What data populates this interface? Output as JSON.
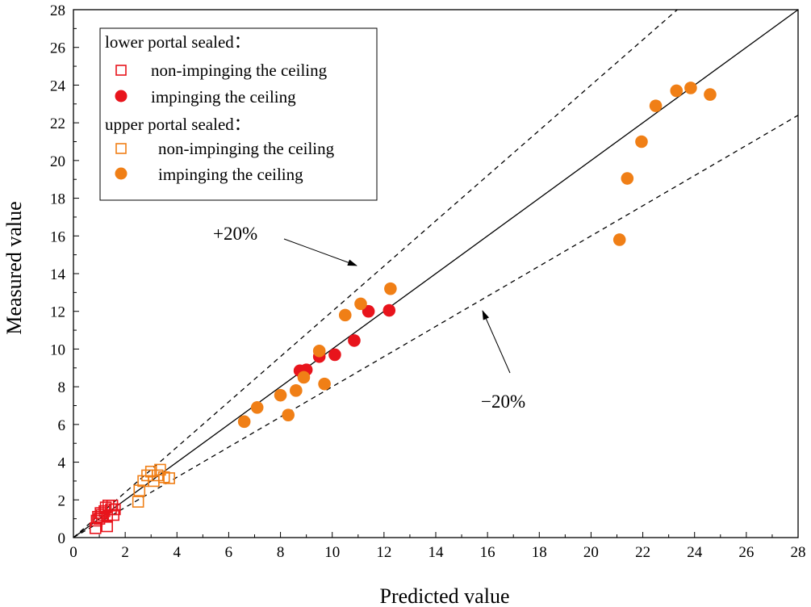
{
  "chart_data": {
    "type": "scatter",
    "title": "",
    "xlabel": "Predicted value",
    "ylabel": "Measured value",
    "xlim": [
      0,
      28
    ],
    "ylim": [
      0,
      28
    ],
    "xticks": [
      0,
      2,
      4,
      6,
      8,
      10,
      12,
      14,
      16,
      18,
      20,
      22,
      24,
      26,
      28
    ],
    "yticks": [
      0,
      2,
      4,
      6,
      8,
      10,
      12,
      14,
      16,
      18,
      20,
      22,
      24,
      26,
      28
    ],
    "grid": false,
    "legend_position": "top-left",
    "legend": {
      "groups": [
        {
          "heading": "lower portal sealed：",
          "series_indices": [
            0,
            1
          ]
        },
        {
          "heading": "upper portal sealed：",
          "series_indices": [
            2,
            3
          ]
        }
      ]
    },
    "series": [
      {
        "name": "non-impinging the ceiling",
        "marker": "square-open",
        "color": "#e8141c",
        "points": [
          [
            0.85,
            0.5
          ],
          [
            0.9,
            0.9
          ],
          [
            0.95,
            1.1
          ],
          [
            1.0,
            1.0
          ],
          [
            1.05,
            1.3
          ],
          [
            1.1,
            1.2
          ],
          [
            1.2,
            1.4
          ],
          [
            1.25,
            1.6
          ],
          [
            1.3,
            1.1
          ],
          [
            1.3,
            0.6
          ],
          [
            1.35,
            1.7
          ],
          [
            1.45,
            1.5
          ],
          [
            1.5,
            1.7
          ],
          [
            1.55,
            1.2
          ],
          [
            1.6,
            1.5
          ]
        ]
      },
      {
        "name": "impinging the ceiling",
        "marker": "circle-filled",
        "color": "#e8141c",
        "points": [
          [
            8.75,
            8.85
          ],
          [
            9.0,
            8.9
          ],
          [
            9.5,
            9.6
          ],
          [
            10.1,
            9.7
          ],
          [
            10.85,
            10.45
          ],
          [
            11.4,
            12.0
          ],
          [
            12.2,
            12.05
          ]
        ]
      },
      {
        "name": "non-impinging the ceiling",
        "marker": "square-open",
        "color": "#f07f16",
        "points": [
          [
            2.5,
            1.9
          ],
          [
            2.55,
            2.5
          ],
          [
            2.7,
            3.0
          ],
          [
            2.85,
            3.3
          ],
          [
            3.0,
            3.5
          ],
          [
            3.1,
            3.0
          ],
          [
            3.25,
            3.3
          ],
          [
            3.35,
            3.6
          ],
          [
            3.5,
            3.2
          ],
          [
            3.7,
            3.15
          ]
        ]
      },
      {
        "name": "impinging the ceiling",
        "marker": "circle-filled",
        "color": "#f07f16",
        "points": [
          [
            6.6,
            6.15
          ],
          [
            7.1,
            6.9
          ],
          [
            8.0,
            7.55
          ],
          [
            8.3,
            6.5
          ],
          [
            8.6,
            7.8
          ],
          [
            8.9,
            8.5
          ],
          [
            9.5,
            9.9
          ],
          [
            9.7,
            8.15
          ],
          [
            10.5,
            11.8
          ],
          [
            11.1,
            12.4
          ],
          [
            12.25,
            13.2
          ],
          [
            21.1,
            15.8
          ],
          [
            21.4,
            19.05
          ],
          [
            21.95,
            21.0
          ],
          [
            22.5,
            22.9
          ],
          [
            23.3,
            23.7
          ],
          [
            23.85,
            23.85
          ],
          [
            24.6,
            23.5
          ]
        ]
      }
    ],
    "reference_lines": [
      {
        "name": "y = x",
        "slope": 1.0,
        "style": "solid"
      },
      {
        "name": "+20%",
        "slope": 1.2,
        "style": "dashed"
      },
      {
        "name": "-20%",
        "slope": 0.8,
        "style": "dashed"
      }
    ],
    "annotations": [
      {
        "text": "+20%",
        "points_to_line": "+20%"
      },
      {
        "text": "−20%",
        "points_to_line": "-20%"
      }
    ]
  }
}
